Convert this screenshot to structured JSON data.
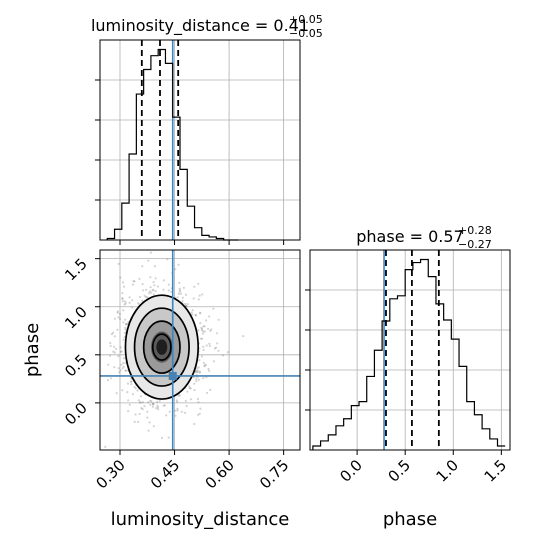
{
  "chart_data": {
    "type": "corner",
    "parameters": [
      "luminosity_distance",
      "phase"
    ],
    "truths": {
      "luminosity_distance": 0.445,
      "phase": 0.28
    },
    "titles": [
      {
        "param": "luminosity_distance",
        "prefix": "luminosity_distance = ",
        "median": "0.41",
        "plus": "+0.05",
        "minus": "−0.05"
      },
      {
        "param": "phase",
        "prefix": "phase = ",
        "median": "0.57",
        "plus": "+0.28",
        "minus": "−0.27"
      }
    ],
    "quantiles": {
      "luminosity_distance": [
        0.36,
        0.41,
        0.46
      ],
      "phase": [
        0.3,
        0.57,
        0.85
      ]
    },
    "luminosity_distance_hist": {
      "xlim": [
        0.245,
        0.795
      ],
      "bin_edges": [
        0.265,
        0.285,
        0.305,
        0.325,
        0.345,
        0.365,
        0.385,
        0.405,
        0.425,
        0.445,
        0.465,
        0.485,
        0.505,
        0.525,
        0.545,
        0.565,
        0.585,
        0.605,
        0.625
      ],
      "counts": [
        2,
        14,
        48,
        112,
        190,
        222,
        240,
        248,
        230,
        160,
        92,
        44,
        16,
        6,
        4,
        2,
        0,
        0
      ]
    },
    "phase_hist": {
      "xlim": [
        -0.49,
        1.59
      ],
      "bin_edges": [
        -0.46,
        -0.38,
        -0.3,
        -0.22,
        -0.14,
        -0.06,
        0.02,
        0.1,
        0.18,
        0.26,
        0.34,
        0.42,
        0.5,
        0.58,
        0.66,
        0.74,
        0.82,
        0.9,
        0.98,
        1.06,
        1.14,
        1.22,
        1.3,
        1.38,
        1.46,
        1.54
      ],
      "counts": [
        8,
        18,
        30,
        48,
        62,
        88,
        96,
        146,
        198,
        256,
        300,
        306,
        358,
        372,
        378,
        344,
        290,
        258,
        220,
        166,
        96,
        70,
        42,
        22,
        8
      ]
    },
    "joint": {
      "xlim": [
        0.245,
        0.795
      ],
      "ylim": [
        -0.49,
        1.59
      ],
      "center": [
        0.415,
        0.58
      ],
      "sigma": [
        0.05,
        0.27
      ]
    },
    "x_ticks_lumdist": [
      "0.30",
      "0.45",
      "0.60",
      "0.75"
    ],
    "x_ticks_phase": [
      "0.0",
      "0.5",
      "1.0",
      "1.5"
    ],
    "y_ticks_phase": [
      "0.0",
      "0.5",
      "1.0",
      "1.5"
    ],
    "xlabel_left": "luminosity_distance",
    "xlabel_right": "phase",
    "ylabel": "phase",
    "colors": {
      "truth": "#4682b4",
      "hist": "#000000",
      "grid": "#b0b0b0",
      "scatter": "#808080"
    }
  }
}
